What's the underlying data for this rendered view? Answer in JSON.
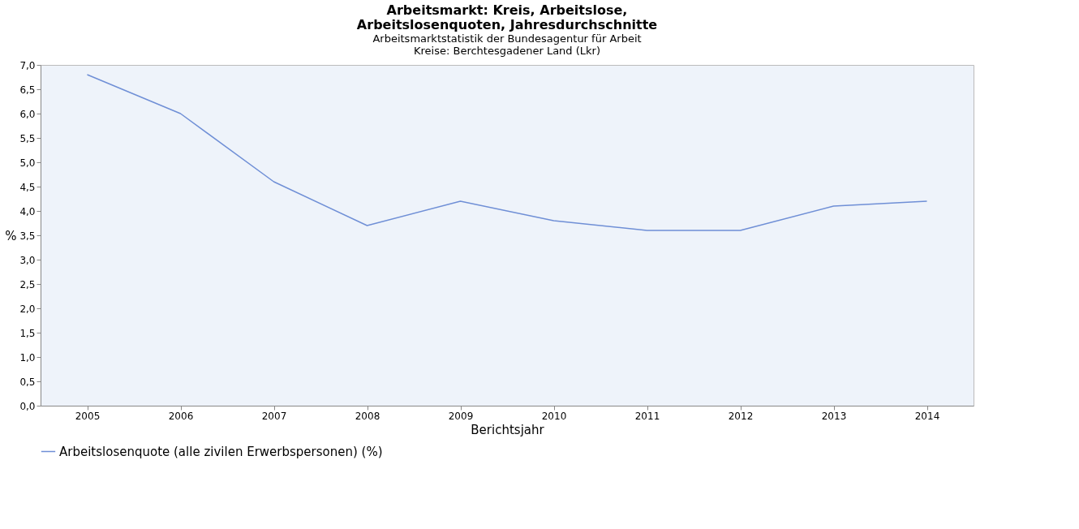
{
  "chart_data": {
    "type": "line",
    "title": [
      "Arbeitsmarkt: Kreis, Arbeitslose,",
      "Arbeitslosenquoten, Jahresdurchschnitte"
    ],
    "subtitle": [
      "Arbeitsmarktstatistik der Bundesagentur für Arbeit",
      "Kreise: Berchtesgadener Land (Lkr)"
    ],
    "xlabel": "Berichtsjahr",
    "ylabel": "%",
    "categories": [
      "2005",
      "2006",
      "2007",
      "2008",
      "2009",
      "2010",
      "2011",
      "2012",
      "2013",
      "2014"
    ],
    "series": [
      {
        "name": "Arbeitslosenquote (alle zivilen Erwerbspersonen) (%)",
        "color": "#6f8fd6",
        "values": [
          6.8,
          6.0,
          4.6,
          3.7,
          4.2,
          3.8,
          3.6,
          3.6,
          4.1,
          4.2
        ]
      }
    ],
    "ylim": [
      0,
      7.0
    ],
    "yticks": [
      {
        "value": 0,
        "label": "0,0"
      },
      {
        "value": 0.5,
        "label": "0,5"
      },
      {
        "value": 1,
        "label": "1,0"
      },
      {
        "value": 1.5,
        "label": "1,5"
      },
      {
        "value": 2,
        "label": "2,0"
      },
      {
        "value": 2.5,
        "label": "2,5"
      },
      {
        "value": 3,
        "label": "3,0"
      },
      {
        "value": 3.5,
        "label": "3,5"
      },
      {
        "value": 4,
        "label": "4,0"
      },
      {
        "value": 4.5,
        "label": "4,5"
      },
      {
        "value": 5,
        "label": "5,0"
      },
      {
        "value": 5.5,
        "label": "5,5"
      },
      {
        "value": 6,
        "label": "6,0"
      },
      {
        "value": 6.5,
        "label": "6,5"
      },
      {
        "value": 7,
        "label": "7,0"
      }
    ],
    "legend": "bottom left",
    "grid": false,
    "marker": "none",
    "line_style": "solid"
  }
}
